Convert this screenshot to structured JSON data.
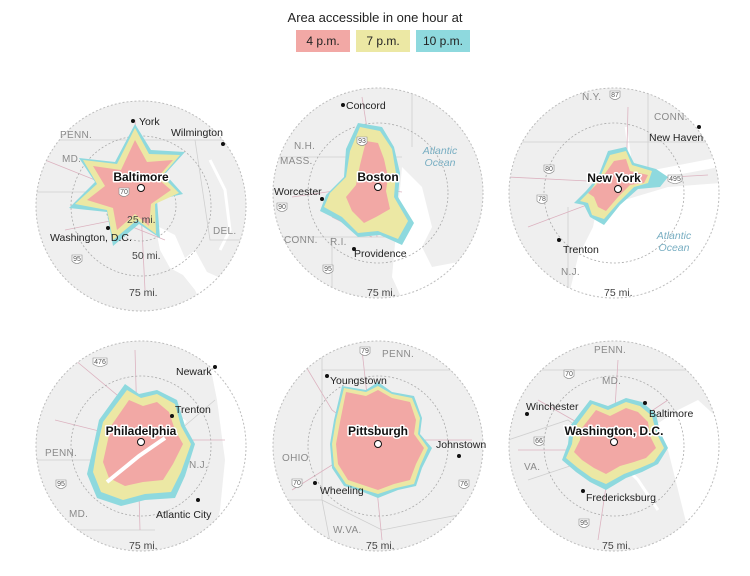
{
  "legend": {
    "title": "Area accessible in one hour at",
    "items": [
      {
        "label": "4 p.m.",
        "color": "#f2a8a5"
      },
      {
        "label": "7 p.m.",
        "color": "#ece8a4"
      },
      {
        "label": "10 p.m.",
        "color": "#8ed9de"
      }
    ]
  },
  "maps": [
    {
      "city": "Baltimore",
      "places": [
        "York",
        "Wilmington",
        "Washington, D.C."
      ],
      "states": [
        "PENN.",
        "MD.",
        "DEL."
      ],
      "rings": [
        "25 mi.",
        "50 mi.",
        "75 mi."
      ],
      "highways": [
        "70",
        "95"
      ]
    },
    {
      "city": "Boston",
      "places": [
        "Concord",
        "Worcester",
        "Providence"
      ],
      "states": [
        "N.H.",
        "MASS.",
        "CONN.",
        "R.I."
      ],
      "rings": [
        "75 mi."
      ],
      "ocean": [
        "Atlantic",
        "Ocean"
      ],
      "highways": [
        "93",
        "90",
        "95"
      ]
    },
    {
      "city": "New York",
      "places": [
        "New Haven",
        "Trenton"
      ],
      "states": [
        "N.Y.",
        "CONN.",
        "N.J."
      ],
      "rings": [
        "75 mi."
      ],
      "ocean": [
        "Atlantic",
        "Ocean"
      ],
      "highways": [
        "87",
        "80",
        "78",
        "495"
      ]
    },
    {
      "city": "Philadelphia",
      "places": [
        "Newark",
        "Trenton",
        "Atlantic City"
      ],
      "states": [
        "PENN.",
        "N.J.",
        "MD."
      ],
      "rings": [
        "75 mi."
      ],
      "highways": [
        "476",
        "95"
      ]
    },
    {
      "city": "Pittsburgh",
      "places": [
        "Youngstown",
        "Johnstown",
        "Wheeling"
      ],
      "states": [
        "PENN.",
        "OHIO",
        "W.VA."
      ],
      "rings": [
        "75 mi."
      ],
      "highways": [
        "79",
        "70",
        "76"
      ]
    },
    {
      "city": "Washington, D.C.",
      "places": [
        "Winchester",
        "Baltimore",
        "Fredericksburg"
      ],
      "states": [
        "PENN.",
        "MD.",
        "VA."
      ],
      "rings": [
        "75 mi."
      ],
      "highways": [
        "70",
        "66",
        "95"
      ]
    }
  ]
}
